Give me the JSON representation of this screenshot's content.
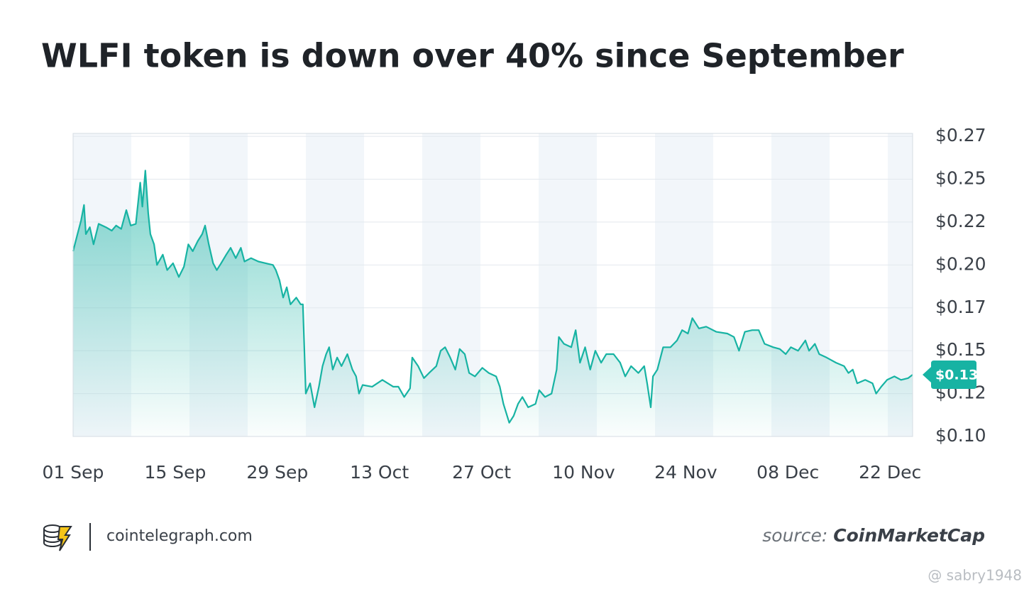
{
  "chart_data": {
    "type": "area",
    "title": "WLFI token is down over 40% since September",
    "xlim": [
      0,
      115.1
    ],
    "xticks": [
      {
        "value": 0,
        "label": "01 Sep"
      },
      {
        "value": 14,
        "label": "15 Sep"
      },
      {
        "value": 28,
        "label": "29 Sep"
      },
      {
        "value": 42,
        "label": "13 Oct"
      },
      {
        "value": 56,
        "label": "27 Oct"
      },
      {
        "value": 70,
        "label": "10 Nov"
      },
      {
        "value": 84,
        "label": "24 Nov"
      },
      {
        "value": 98,
        "label": "08 Dec"
      },
      {
        "value": 112,
        "label": "22 Dec"
      }
    ],
    "ylim": [
      0.1,
      0.2767
    ],
    "yticks": [
      {
        "value": 0.1,
        "label": "$0.10"
      },
      {
        "value": 0.125,
        "label": "$0.12"
      },
      {
        "value": 0.15,
        "label": "$0.15"
      },
      {
        "value": 0.175,
        "label": "$0.17"
      },
      {
        "value": 0.2,
        "label": "$0.20"
      },
      {
        "value": 0.225,
        "label": "$0.22"
      },
      {
        "value": 0.25,
        "label": "$0.25"
      },
      {
        "value": 0.275,
        "label": "$0.27"
      }
    ],
    "grid": true,
    "color": "#17b3a3",
    "x": [
      0,
      0.6,
      1.1,
      1.5,
      1.75,
      2.3,
      2.8,
      3.5,
      4.5,
      5.3,
      5.9,
      6.6,
      7.3,
      7.9,
      8.6,
      9.2,
      9.5,
      9.9,
      10.3,
      10.6,
      11.1,
      11.5,
      12.3,
      12.9,
      13.7,
      14.5,
      15.2,
      15.8,
      16.4,
      17.1,
      17.7,
      18.1,
      18.6,
      19.2,
      19.7,
      20.3,
      21,
      21.6,
      22.3,
      23,
      23.5,
      24.4,
      25.4,
      26.4,
      27.4,
      27.8,
      28.3,
      28.8,
      29.3,
      29.8,
      30.6,
      31.2,
      31.5,
      31.7,
      31.9,
      32.5,
      33.1,
      33.7,
      34.2,
      34.7,
      35.1,
      35.6,
      36.2,
      36.8,
      37.6,
      38.3,
      38.8,
      39.2,
      39.7,
      41,
      42.4,
      43.9,
      44.6,
      45.4,
      46.2,
      46.5,
      47.3,
      48.1,
      48.8,
      49.8,
      50.4,
      51,
      51.7,
      52.4,
      53,
      53.7,
      54.3,
      55.1,
      56.1,
      57,
      58,
      58.5,
      59,
      59.8,
      60.4,
      61,
      61.6,
      62.4,
      63.4,
      63.9,
      64.7,
      65.6,
      66.3,
      66.6,
      67.3,
      68.3,
      68.9,
      69.5,
      70.2,
      70.9,
      71.6,
      72.4,
      73.1,
      74.1,
      75,
      75.7,
      76.5,
      77.5,
      78.3,
      78.7,
      79.2,
      79.5,
      80.1,
      80.9,
      81.9,
      82.8,
      83.5,
      84.3,
      84.9,
      85.8,
      86.8,
      88.2,
      89.7,
      90.6,
      91.3,
      92.1,
      93.1,
      94,
      94.8,
      96,
      96.9,
      97.7,
      98.4,
      99.4,
      100.4,
      100.9,
      101.7,
      102.3,
      103.3,
      104.6,
      105.7,
      106.3,
      106.9,
      107.5,
      108.6,
      109.6,
      110.1,
      110.8,
      111.6,
      112.6,
      113.5,
      114.5,
      115.1
    ],
    "values": [
      0.208,
      0.218,
      0.226,
      0.235,
      0.218,
      0.222,
      0.212,
      0.224,
      0.222,
      0.22,
      0.223,
      0.221,
      0.232,
      0.223,
      0.224,
      0.248,
      0.234,
      0.255,
      0.23,
      0.218,
      0.212,
      0.2,
      0.206,
      0.197,
      0.201,
      0.193,
      0.199,
      0.212,
      0.208,
      0.214,
      0.218,
      0.223,
      0.212,
      0.201,
      0.197,
      0.201,
      0.206,
      0.21,
      0.204,
      0.21,
      0.202,
      0.204,
      0.202,
      0.201,
      0.2,
      0.197,
      0.191,
      0.181,
      0.187,
      0.177,
      0.181,
      0.177,
      0.177,
      0.152,
      0.125,
      0.131,
      0.117,
      0.129,
      0.141,
      0.148,
      0.152,
      0.139,
      0.146,
      0.141,
      0.148,
      0.139,
      0.135,
      0.125,
      0.13,
      0.129,
      0.133,
      0.129,
      0.129,
      0.123,
      0.128,
      0.146,
      0.141,
      0.134,
      0.137,
      0.141,
      0.15,
      0.152,
      0.146,
      0.139,
      0.151,
      0.148,
      0.137,
      0.135,
      0.14,
      0.137,
      0.135,
      0.129,
      0.119,
      0.108,
      0.112,
      0.119,
      0.123,
      0.117,
      0.119,
      0.127,
      0.123,
      0.125,
      0.139,
      0.158,
      0.154,
      0.152,
      0.162,
      0.143,
      0.152,
      0.139,
      0.15,
      0.143,
      0.148,
      0.148,
      0.143,
      0.135,
      0.141,
      0.137,
      0.141,
      0.131,
      0.117,
      0.135,
      0.139,
      0.152,
      0.152,
      0.156,
      0.162,
      0.16,
      0.169,
      0.163,
      0.164,
      0.161,
      0.16,
      0.158,
      0.15,
      0.161,
      0.162,
      0.162,
      0.154,
      0.152,
      0.151,
      0.148,
      0.152,
      0.15,
      0.156,
      0.15,
      0.154,
      0.148,
      0.146,
      0.143,
      0.141,
      0.137,
      0.139,
      0.131,
      0.133,
      0.131,
      0.125,
      0.129,
      0.133,
      0.135,
      0.133,
      0.134,
      0.136
    ],
    "last_price_label": "$0.13"
  },
  "footer": {
    "site": "cointelegraph.com",
    "source_prefix": "source:",
    "source": "CoinMarketCap",
    "watermark": "@ sabry1948"
  }
}
